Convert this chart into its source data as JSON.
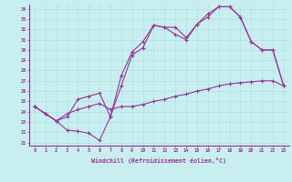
{
  "xlabel": "Windchill (Refroidissement éolien,°C)",
  "bg_color": "#c8eef0",
  "line_color": "#993399",
  "grid_color": "#aadddd",
  "xlim": [
    -0.5,
    23.5
  ],
  "ylim": [
    20.7,
    34.5
  ],
  "xticks": [
    0,
    1,
    2,
    3,
    4,
    5,
    6,
    7,
    8,
    9,
    10,
    11,
    12,
    13,
    14,
    15,
    16,
    17,
    18,
    19,
    20,
    21,
    22,
    23
  ],
  "yticks": [
    21,
    22,
    23,
    24,
    25,
    26,
    27,
    28,
    29,
    30,
    31,
    32,
    33,
    34
  ],
  "line1_x": [
    0,
    1,
    2,
    3,
    4,
    5,
    6,
    7,
    8,
    9,
    10,
    11,
    12,
    13,
    14,
    15,
    16,
    17,
    18,
    19,
    20,
    21,
    22,
    23
  ],
  "line1_y": [
    24.5,
    23.8,
    23.1,
    22.2,
    22.1,
    21.9,
    21.2,
    23.5,
    26.5,
    29.5,
    30.2,
    32.4,
    32.2,
    31.5,
    31.0,
    32.5,
    33.5,
    34.2,
    34.2,
    33.2,
    30.8,
    30.0,
    30.0,
    26.5
  ],
  "line2_x": [
    0,
    1,
    2,
    3,
    4,
    5,
    6,
    7,
    8,
    9,
    10,
    11,
    12,
    13,
    14,
    15,
    16,
    17,
    18,
    19,
    20,
    21,
    22,
    23
  ],
  "line2_y": [
    24.5,
    23.8,
    23.1,
    23.5,
    25.2,
    25.5,
    25.8,
    23.5,
    27.5,
    29.8,
    30.8,
    32.4,
    32.2,
    32.2,
    31.2,
    32.5,
    33.2,
    34.2,
    34.2,
    33.2,
    30.8,
    30.0,
    30.0,
    26.5
  ],
  "line3_x": [
    0,
    1,
    2,
    3,
    4,
    5,
    6,
    7,
    8,
    9,
    10,
    11,
    12,
    13,
    14,
    15,
    16,
    17,
    18,
    19,
    20,
    21,
    22,
    23
  ],
  "line3_y": [
    24.5,
    23.8,
    23.1,
    23.8,
    24.2,
    24.5,
    24.8,
    24.2,
    24.5,
    24.5,
    24.7,
    25.0,
    25.2,
    25.5,
    25.7,
    26.0,
    26.2,
    26.5,
    26.7,
    26.8,
    26.9,
    27.0,
    27.0,
    26.5
  ]
}
